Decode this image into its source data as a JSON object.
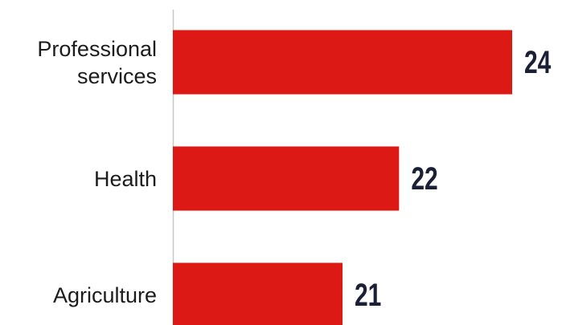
{
  "chart_data": {
    "type": "bar",
    "orientation": "horizontal",
    "categories": [
      "Professional services",
      "Health",
      "Agriculture"
    ],
    "values": [
      24,
      22,
      21
    ],
    "color": "#dc1914",
    "xlim": [
      18,
      24
    ]
  }
}
